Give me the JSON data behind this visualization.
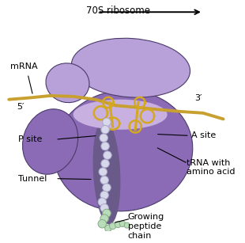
{
  "bg_color": "#ffffff",
  "large_subunit_color": "#8b6bb5",
  "large_subunit_color2": "#9b7fc8",
  "small_subunit_color": "#b8a0d8",
  "tunnel_color": "#6a5a8a",
  "mrna_color": "#c8a030",
  "trna_color": "#d4a820",
  "peptide_color_inner": "#d0d0e8",
  "peptide_color_outer": "#b8ddb8",
  "labels": {
    "title": "70S ribosome",
    "mrna": "mRNA",
    "five_prime": "5′",
    "three_prime": "3′",
    "p_site": "P site",
    "a_site": "A site",
    "tunnel": "Tunnel",
    "trna": "tRNA with\namino acid",
    "peptide": "Growing\npeptide\nchain"
  }
}
